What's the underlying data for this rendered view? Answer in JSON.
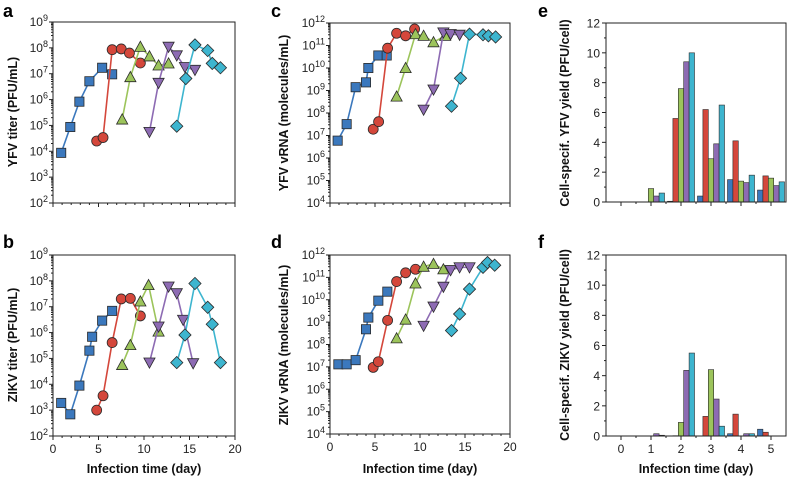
{
  "colors": {
    "blue": "#3b78bd",
    "red": "#d4473b",
    "green": "#9cc45b",
    "purple": "#8d6bb3",
    "cyan": "#3db5cf",
    "marker_edge": "#2a2a2a",
    "axis": "#222222"
  },
  "chart_data": [
    {
      "panel": "a",
      "type": "scatter",
      "ylabel": "YFV titer (PFU/mL)",
      "xlabel": "",
      "yscale": "log",
      "ylim": [
        100.0,
        1000000000.0
      ],
      "xlim": [
        0,
        20
      ],
      "ytick_exponents": [
        2,
        3,
        4,
        5,
        6,
        7,
        8,
        9
      ],
      "xticks": [
        0,
        5,
        10,
        15,
        20
      ],
      "show_xtick_labels": false,
      "series": [
        {
          "color": "blue",
          "marker": "square",
          "x": [
            0.9,
            1.9,
            2.9,
            4.0,
            5.4,
            6.5
          ],
          "y": [
            8700.0,
            87000.0,
            830000.0,
            5100000.0,
            17000000.0,
            9500000.0
          ]
        },
        {
          "color": "red",
          "marker": "circle",
          "x": [
            4.8,
            5.5,
            6.5,
            7.5,
            8.4,
            9.6
          ],
          "y": [
            25000.0,
            34000.0,
            85000000.0,
            91000000.0,
            63000000.0,
            26000000.0
          ]
        },
        {
          "color": "green",
          "marker": "triangle-up",
          "x": [
            7.6,
            8.5,
            9.6,
            10.6,
            11.6,
            12.7
          ],
          "y": [
            170000.0,
            7400000.0,
            110000000.0,
            47000000.0,
            21000000.0,
            25000000.0
          ]
        },
        {
          "color": "purple",
          "marker": "triangle-down",
          "x": [
            10.6,
            11.6,
            12.7,
            13.6,
            14.5,
            15.6
          ],
          "y": [
            56000.0,
            4400000.0,
            110000000.0,
            51000000.0,
            18000000.0,
            14000000.0
          ]
        },
        {
          "color": "cyan",
          "marker": "diamond",
          "x": [
            13.6,
            14.6,
            15.6,
            17.0,
            17.5,
            18.4
          ],
          "y": [
            93000.0,
            6500000.0,
            130000000.0,
            79000000.0,
            25000000.0,
            17000000.0
          ]
        }
      ]
    },
    {
      "panel": "b",
      "type": "scatter",
      "ylabel": "ZIKV titer (PFU/mL)",
      "xlabel": "Infection time (day)",
      "yscale": "log",
      "ylim": [
        100.0,
        1000000000.0
      ],
      "xlim": [
        0,
        20
      ],
      "ytick_exponents": [
        2,
        3,
        4,
        5,
        6,
        7,
        8,
        9
      ],
      "xticks": [
        0,
        5,
        10,
        15,
        20
      ],
      "show_xtick_labels": true,
      "series": [
        {
          "color": "blue",
          "marker": "square",
          "x": [
            0.9,
            1.9,
            2.9,
            4.0,
            4.3,
            5.4,
            6.5
          ],
          "y": [
            1900.0,
            690.0,
            8900.0,
            200000.0,
            690000.0,
            2900000.0,
            6900000.0
          ]
        },
        {
          "color": "red",
          "marker": "circle",
          "x": [
            4.8,
            5.5,
            6.5,
            7.5,
            8.5,
            9.6
          ],
          "y": [
            1000.0,
            3600.0,
            410000.0,
            20000000.0,
            21000000.0,
            4400000.0
          ]
        },
        {
          "color": "green",
          "marker": "triangle-up",
          "x": [
            7.6,
            8.5,
            9.6,
            10.5,
            11.6
          ],
          "y": [
            56000.0,
            330000.0,
            16000000.0,
            69000000.0,
            1100000.0
          ]
        },
        {
          "color": "purple",
          "marker": "triangle-down",
          "x": [
            10.6,
            11.6,
            12.7,
            13.6,
            14.3,
            15.4
          ],
          "y": [
            69000.0,
            1700000.0,
            60000000.0,
            33000000.0,
            3100000.0,
            65000.0
          ]
        },
        {
          "color": "cyan",
          "marker": "diamond",
          "x": [
            13.6,
            14.5,
            15.6,
            17.0,
            17.5,
            18.4
          ],
          "y": [
            69000.0,
            810000.0,
            79000000.0,
            9500000.0,
            2100000.0,
            69000.0
          ]
        }
      ]
    },
    {
      "panel": "c",
      "type": "scatter",
      "ylabel": "YFV vRNA (molecules/mL)",
      "xlabel": "",
      "yscale": "log",
      "ylim": [
        10000.0,
        1000000000000.0
      ],
      "xlim": [
        0,
        20
      ],
      "ytick_exponents": [
        4,
        5,
        6,
        7,
        8,
        9,
        10,
        11,
        12
      ],
      "xticks": [
        0,
        5,
        10,
        15,
        20
      ],
      "show_xtick_labels": false,
      "series": [
        {
          "color": "blue",
          "marker": "square",
          "x": [
            0.85,
            1.85,
            2.85,
            4.0,
            4.26,
            5.37,
            6.3
          ],
          "y": [
            5900000.0,
            32000000.0,
            1400000000.0,
            2300000000.0,
            10000000000.0,
            36000000000.0,
            36000000000.0
          ]
        },
        {
          "color": "red",
          "marker": "circle",
          "x": [
            4.8,
            5.4,
            6.4,
            7.4,
            8.4,
            9.4
          ],
          "y": [
            19000000.0,
            41000000.0,
            76000000000.0,
            350000000000.0,
            270000000000.0,
            540000000000.0
          ]
        },
        {
          "color": "green",
          "marker": "triangle-up",
          "x": [
            7.4,
            8.4,
            9.5,
            10.4,
            11.5,
            12.8
          ],
          "y": [
            540000000.0,
            10000000000.0,
            320000000000.0,
            270000000000.0,
            140000000000.0,
            270000000000.0
          ]
        },
        {
          "color": "purple",
          "marker": "triangle-down",
          "x": [
            10.4,
            11.5,
            12.6,
            13.4,
            14.4
          ],
          "y": [
            140000000.0,
            1100000000.0,
            380000000000.0,
            320000000000.0,
            300000000000.0
          ]
        },
        {
          "color": "cyan",
          "marker": "diamond",
          "x": [
            13.5,
            14.5,
            15.5,
            17.0,
            17.6,
            18.4
          ],
          "y": [
            200000000.0,
            3500000000.0,
            320000000000.0,
            300000000000.0,
            270000000000.0,
            240000000000.0
          ]
        }
      ]
    },
    {
      "panel": "d",
      "type": "scatter",
      "ylabel": "ZIKV vRNA (molecules/mL)",
      "xlabel": "Infection time (day)",
      "yscale": "log",
      "ylim": [
        10000.0,
        1000000000000.0
      ],
      "xlim": [
        0,
        20
      ],
      "ytick_exponents": [
        4,
        5,
        6,
        7,
        8,
        9,
        10,
        11,
        12
      ],
      "xticks": [
        0,
        5,
        10,
        15,
        20
      ],
      "show_xtick_labels": true,
      "series": [
        {
          "color": "blue",
          "marker": "square",
          "x": [
            0.93,
            1.85,
            2.85,
            4.0,
            4.26,
            5.37,
            6.37
          ],
          "y": [
            13000000.0,
            13000000.0,
            20000000.0,
            480000000.0,
            1600000000.0,
            9100000000.0,
            23000000000.0
          ]
        },
        {
          "color": "red",
          "marker": "circle",
          "x": [
            4.8,
            5.37,
            6.4,
            7.4,
            8.4,
            9.5
          ],
          "y": [
            9500000.0,
            17000000.0,
            1200000000.0,
            65000000000.0,
            160000000000.0,
            230000000000.0
          ]
        },
        {
          "color": "green",
          "marker": "triangle-up",
          "x": [
            7.4,
            8.4,
            9.5,
            10.4,
            11.5,
            12.6
          ],
          "y": [
            190000000.0,
            1300000000.0,
            54000000000.0,
            300000000000.0,
            400000000000.0,
            230000000000.0
          ]
        },
        {
          "color": "purple",
          "marker": "triangle-down",
          "x": [
            10.4,
            11.5,
            12.6,
            13.4,
            14.4,
            15.5
          ],
          "y": [
            680000000.0,
            4900000000.0,
            38000000000.0,
            210000000000.0,
            280000000000.0,
            280000000000.0
          ]
        },
        {
          "color": "cyan",
          "marker": "diamond",
          "x": [
            13.5,
            14.4,
            15.5,
            17.0,
            17.5,
            18.3
          ],
          "y": [
            420000000.0,
            2300000000.0,
            30000000000.0,
            280000000000.0,
            460000000000.0,
            350000000000.0
          ]
        }
      ]
    },
    {
      "panel": "e",
      "type": "bar",
      "ylabel": "Cell-specif. YFV yield (PFU/cell)",
      "xlabel": "",
      "ylim": [
        0,
        12
      ],
      "xlim": [
        -0.5,
        5.5
      ],
      "yticks": [
        0,
        2,
        4,
        6,
        8,
        10,
        12
      ],
      "xticks": [
        0,
        1,
        2,
        3,
        4,
        5
      ],
      "show_xtick_labels": false,
      "categories": [
        1,
        2,
        3,
        4,
        5
      ],
      "series": [
        {
          "color": "blue",
          "values": [
            0,
            0.05,
            0.4,
            1.5,
            0.8
          ]
        },
        {
          "color": "red",
          "values": [
            0,
            5.6,
            6.2,
            4.1,
            1.75
          ]
        },
        {
          "color": "green",
          "values": [
            0.9,
            7.6,
            2.9,
            1.4,
            1.6
          ]
        },
        {
          "color": "purple",
          "values": [
            0.4,
            9.4,
            3.9,
            1.3,
            1.1
          ]
        },
        {
          "color": "cyan",
          "values": [
            0.6,
            10.0,
            6.5,
            1.8,
            1.35
          ]
        }
      ]
    },
    {
      "panel": "f",
      "type": "bar",
      "ylabel": "Cell-specif. ZIKV yield (PFU/cell)",
      "xlabel": "Infection time (day)",
      "ylim": [
        0,
        12
      ],
      "xlim": [
        -0.5,
        5.5
      ],
      "yticks": [
        0,
        2,
        4,
        6,
        8,
        10,
        12
      ],
      "xticks": [
        0,
        1,
        2,
        3,
        4,
        5
      ],
      "show_xtick_labels": true,
      "categories": [
        1,
        2,
        3,
        4,
        5
      ],
      "series": [
        {
          "color": "blue",
          "values": [
            0,
            0,
            0,
            0.15,
            0.45
          ]
        },
        {
          "color": "red",
          "values": [
            0,
            0.02,
            1.3,
            1.45,
            0.25
          ]
        },
        {
          "color": "green",
          "values": [
            0,
            0.9,
            4.4,
            0,
            0
          ]
        },
        {
          "color": "purple",
          "values": [
            0.15,
            4.35,
            2.45,
            0.15,
            0
          ]
        },
        {
          "color": "cyan",
          "values": [
            0.05,
            5.5,
            0.65,
            0.15,
            0
          ]
        }
      ]
    }
  ]
}
